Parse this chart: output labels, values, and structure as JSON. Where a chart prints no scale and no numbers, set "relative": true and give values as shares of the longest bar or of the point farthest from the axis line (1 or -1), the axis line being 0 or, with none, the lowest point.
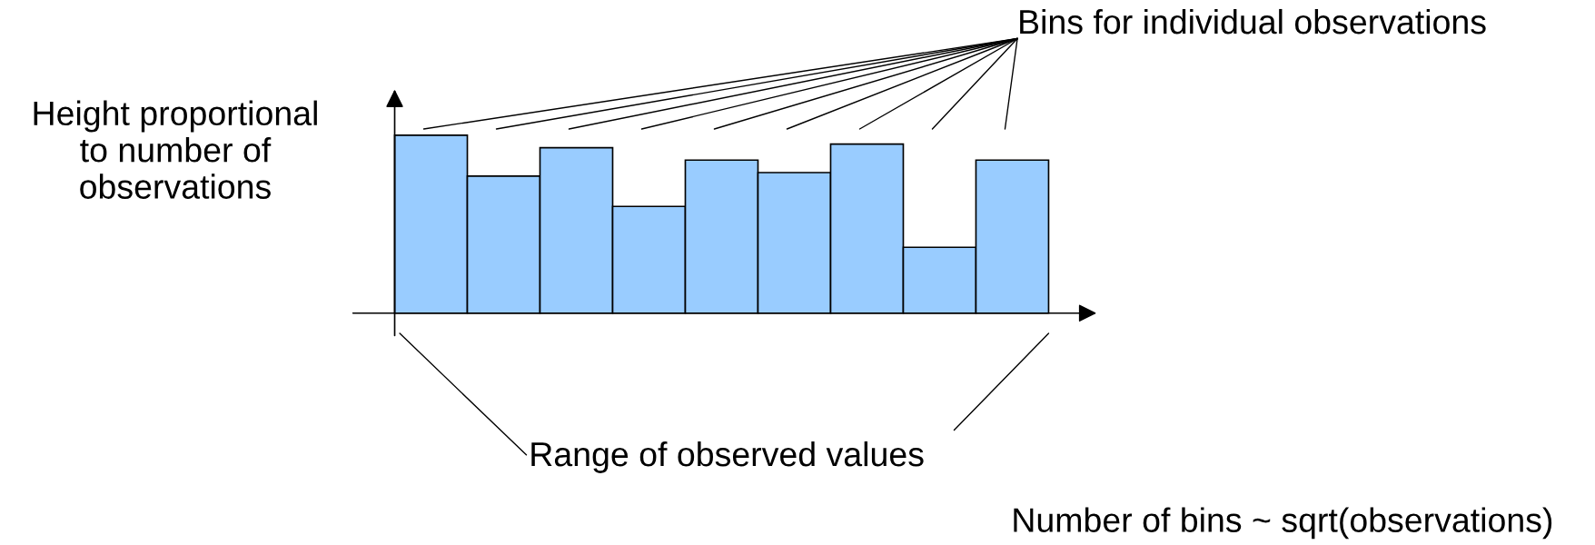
{
  "chart_data": {
    "type": "bar",
    "relative": true,
    "categories": [
      null,
      null,
      null,
      null,
      null,
      null,
      null,
      null,
      null
    ],
    "values": [
      1,
      0.77,
      0.93,
      0.6,
      0.86,
      0.79,
      0.95,
      0.37,
      0.86
    ],
    "color": "#99ccff",
    "xlabel": "Range of observed values",
    "ylabel": "Height proportional\nto number of\nobservations",
    "annotations": [
      "Bins for individual observations",
      "Number of bins ~ sqrt(observations)"
    ]
  }
}
